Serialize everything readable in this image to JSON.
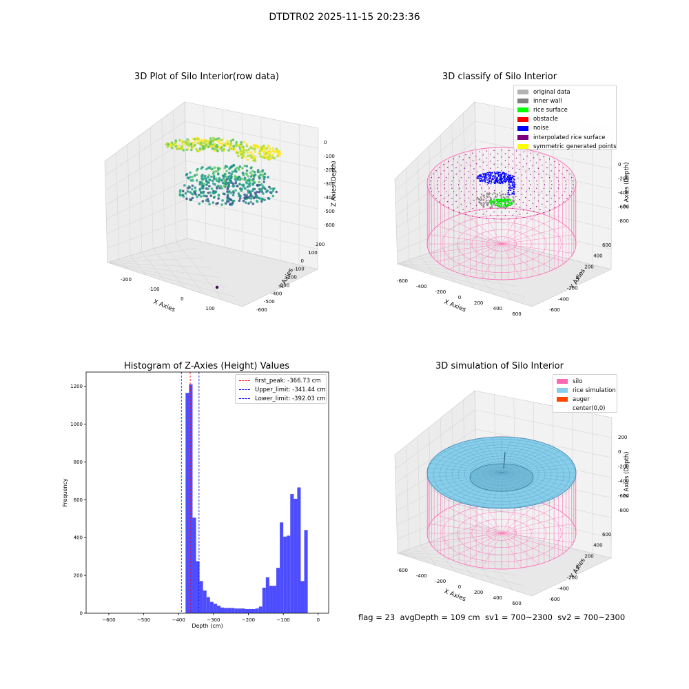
{
  "suptitle": "DTDTR02 2025-11-15 20:23:36",
  "footer": "flag = 23  avgDepth = 109 cm  sv1 = 700~2300  sv2 = 700~2300",
  "chart_data": [
    {
      "type": "scatter",
      "title": "3D Plot of Silo Interior(row data)",
      "xlabel": "X Axies",
      "ylabel": "Y Axies",
      "zlabel": "Z Axies (Depth)",
      "xticks": [
        "-200",
        "-100",
        "0",
        "100"
      ],
      "yticks": [
        "200",
        "100",
        "0",
        "-100",
        "-200",
        "-300",
        "-400",
        "-500",
        "-600"
      ],
      "zticks": [
        "0",
        "-100",
        "-200",
        "-300",
        "-400",
        "-500",
        "-600"
      ],
      "colormap": "viridis"
    },
    {
      "type": "scatter",
      "title": "3D classify of Silo Interior",
      "xlabel": "X Axies",
      "ylabel": "Y Axies",
      "zlabel": "Z Axies (Depth)",
      "xticks": [
        "-600",
        "-400",
        "-200",
        "0",
        "200",
        "400",
        "600"
      ],
      "yticks": [
        "600",
        "400",
        "200",
        "0",
        "-200",
        "-400",
        "-600"
      ],
      "zticks": [
        "0",
        "-200",
        "-400",
        "-600",
        "-800"
      ],
      "legend": [
        {
          "label": "original data",
          "color": "#b3b3b3"
        },
        {
          "label": "inner wall",
          "color": "#808080"
        },
        {
          "label": "rice surface",
          "color": "#00ff00"
        },
        {
          "label": "obstacle",
          "color": "#ff0000"
        },
        {
          "label": "noise",
          "color": "#0000ff"
        },
        {
          "label": "interpolated rice surface",
          "color": "#800080"
        },
        {
          "label": "symmetric generated points",
          "color": "#ffff00"
        }
      ],
      "legend_position": "upper right"
    },
    {
      "type": "bar",
      "title": "Histogram of Z-Axies (Height) Values",
      "xlabel": "Depth (cm)",
      "ylabel": "Frequency",
      "xlim": [
        -665,
        30
      ],
      "ylim": [
        0,
        1275
      ],
      "xticks": [
        -600,
        -500,
        -400,
        -300,
        -200,
        -100,
        0
      ],
      "yticks": [
        0,
        200,
        400,
        600,
        800,
        1000,
        1200
      ],
      "color": "#4d4dff",
      "bins": [
        {
          "x0": -380,
          "x1": -370,
          "value": 1165
        },
        {
          "x0": -370,
          "x1": -360,
          "value": 1210
        },
        {
          "x0": -360,
          "x1": -350,
          "value": 505
        },
        {
          "x0": -350,
          "x1": -340,
          "value": 275
        },
        {
          "x0": -340,
          "x1": -330,
          "value": 170
        },
        {
          "x0": -330,
          "x1": -320,
          "value": 120
        },
        {
          "x0": -320,
          "x1": -310,
          "value": 85
        },
        {
          "x0": -310,
          "x1": -300,
          "value": 60
        },
        {
          "x0": -300,
          "x1": -290,
          "value": 50
        },
        {
          "x0": -290,
          "x1": -280,
          "value": 40
        },
        {
          "x0": -280,
          "x1": -270,
          "value": 30
        },
        {
          "x0": -270,
          "x1": -260,
          "value": 28
        },
        {
          "x0": -260,
          "x1": -250,
          "value": 28
        },
        {
          "x0": -250,
          "x1": -240,
          "value": 28
        },
        {
          "x0": -240,
          "x1": -230,
          "value": 25
        },
        {
          "x0": -230,
          "x1": -220,
          "value": 25
        },
        {
          "x0": -220,
          "x1": -210,
          "value": 25
        },
        {
          "x0": -210,
          "x1": -200,
          "value": 22
        },
        {
          "x0": -200,
          "x1": -190,
          "value": 22
        },
        {
          "x0": -190,
          "x1": -180,
          "value": 22
        },
        {
          "x0": -180,
          "x1": -170,
          "value": 25
        },
        {
          "x0": -170,
          "x1": -160,
          "value": 35
        },
        {
          "x0": -160,
          "x1": -150,
          "value": 135
        },
        {
          "x0": -150,
          "x1": -140,
          "value": 190
        },
        {
          "x0": -140,
          "x1": -130,
          "value": 145
        },
        {
          "x0": -130,
          "x1": -120,
          "value": 145
        },
        {
          "x0": -120,
          "x1": -110,
          "value": 240
        },
        {
          "x0": -110,
          "x1": -100,
          "value": 480
        },
        {
          "x0": -100,
          "x1": -90,
          "value": 405
        },
        {
          "x0": -90,
          "x1": -80,
          "value": 410
        },
        {
          "x0": -80,
          "x1": -70,
          "value": 630
        },
        {
          "x0": -70,
          "x1": -60,
          "value": 605
        },
        {
          "x0": -60,
          "x1": -50,
          "value": 665
        },
        {
          "x0": -50,
          "x1": -40,
          "value": 170
        },
        {
          "x0": -40,
          "x1": -30,
          "value": 440
        }
      ],
      "vlines": [
        {
          "label": "first_peak: -366.73 cm",
          "x": -366.73,
          "color": "#ff0000"
        },
        {
          "label": "Upper_limit: -341.44 cm",
          "x": -341.44,
          "color": "#0000ff"
        },
        {
          "label": "Lower_limit: -392.03 cm",
          "x": -392.03,
          "color": "#0000ff"
        }
      ],
      "legend_position": "upper right"
    },
    {
      "type": "surface",
      "title": "3D simulation of Silo Interior",
      "xlabel": "X Axies",
      "ylabel": "Y Axies",
      "zlabel": "Z Axies (Depth)",
      "xticks": [
        "-600",
        "-400",
        "-200",
        "0",
        "200",
        "400",
        "600"
      ],
      "yticks": [
        "600",
        "400",
        "200",
        "0",
        "-200",
        "-400",
        "-600"
      ],
      "zticks": [
        "200",
        "0",
        "-200",
        "-400",
        "-600",
        "-800"
      ],
      "legend": [
        {
          "label": "silo",
          "color": "#ff69b4"
        },
        {
          "label": "rice simulation",
          "color": "#87ceeb"
        },
        {
          "label": "auger",
          "color": "#ff4500"
        },
        {
          "label": "center(0,0)",
          "color": "#ffffff"
        }
      ],
      "legend_position": "upper right"
    }
  ]
}
